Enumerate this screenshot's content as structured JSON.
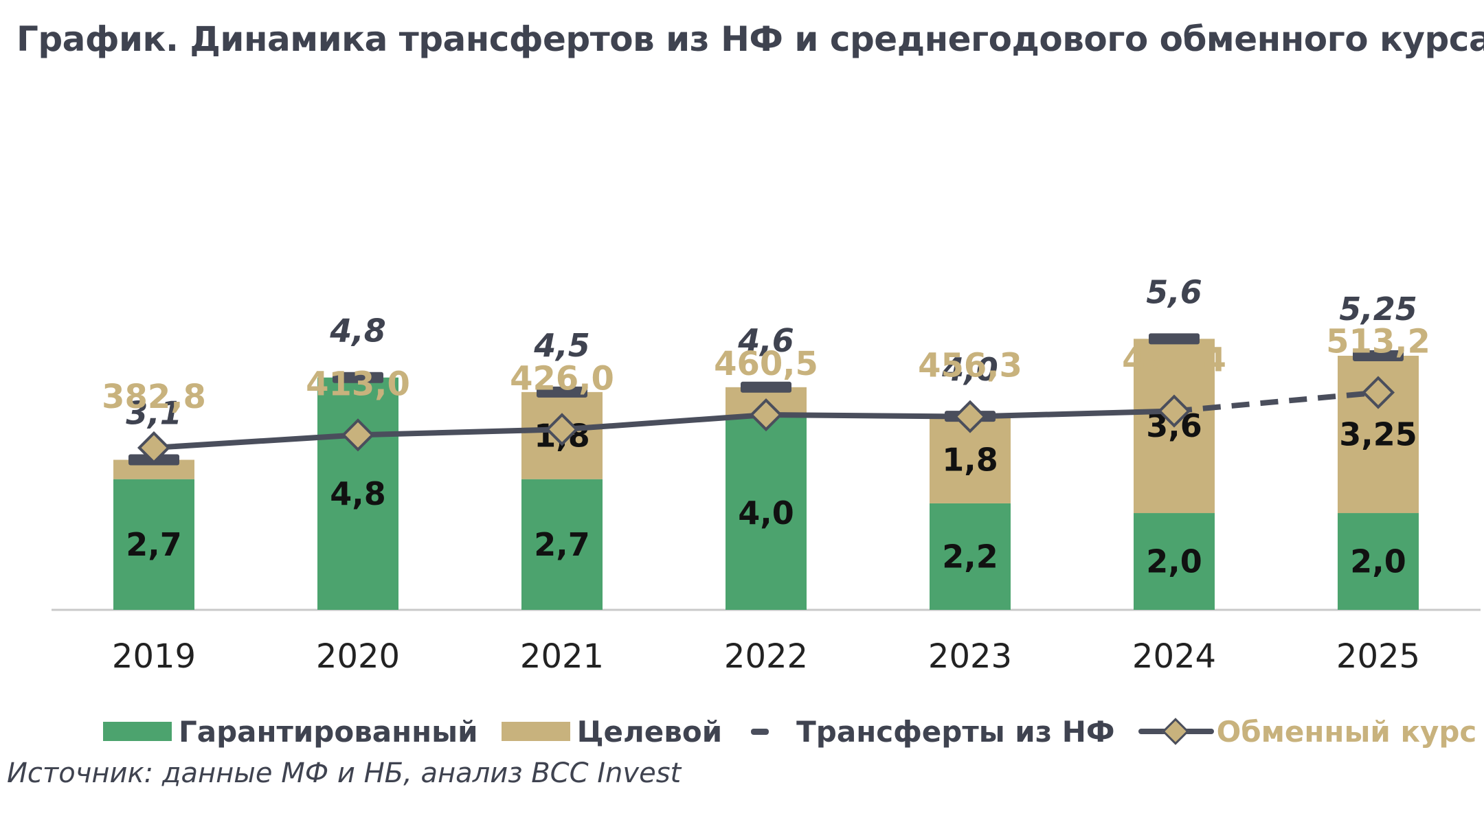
{
  "title": "График. Динамика трансфертов из НФ и среднегодового обменного курса",
  "source": "Источник: данные МФ и НБ, анализ BCC Invest",
  "legend": {
    "guaranteed": "Гарантированный",
    "targeted": "Целевой",
    "transfers": "Трансферты из НФ",
    "rate": "Обменный курс"
  },
  "colors": {
    "guaranteed": "#4ca36e",
    "targeted": "#c8b27d",
    "total_marker": "#4a4e5c",
    "rate_line": "#4a4e5c",
    "rate_label": "#c8b27d",
    "text": "#3f4350"
  },
  "chart_data": {
    "type": "bar",
    "stacked": true,
    "categories": [
      "2019",
      "2020",
      "2021",
      "2022",
      "2023",
      "2024",
      "2025"
    ],
    "series": [
      {
        "name": "Гарантированный",
        "values": [
          2.7,
          4.8,
          2.7,
          4.0,
          2.2,
          2.0,
          2.0
        ],
        "labels": [
          "2,7",
          "4,8",
          "2,7",
          "4,0",
          "2,2",
          "2,0",
          "2,0"
        ]
      },
      {
        "name": "Целевой",
        "values": [
          0.4,
          0.0,
          1.8,
          0.6,
          1.8,
          3.6,
          3.25
        ],
        "labels": [
          "",
          "",
          "1,8",
          "",
          "1,8",
          "3,6",
          "3,25"
        ]
      }
    ],
    "totals": {
      "name": "Трансферты из НФ",
      "values": [
        3.1,
        4.8,
        4.5,
        4.6,
        4.0,
        5.6,
        5.25
      ],
      "labels": [
        "3,1",
        "4,8",
        "4,5",
        "4,6",
        "4,0",
        "5,6",
        "5,25"
      ]
    },
    "line": {
      "name": "Обменный курс",
      "values": [
        382.8,
        413.0,
        426.0,
        460.5,
        456.3,
        469.4,
        513.2
      ],
      "labels": [
        "382,8",
        "413,0",
        "426,0",
        "460,5",
        "456,3",
        "469,4",
        "513,2"
      ],
      "dashed_last_segment": true
    },
    "ylim_bars": [
      0,
      12.6
    ],
    "ylim_line": [
      0,
      1440
    ]
  }
}
